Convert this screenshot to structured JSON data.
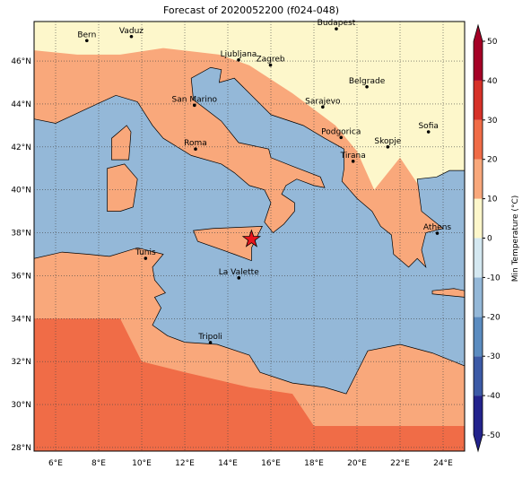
{
  "title": "Forecast of 2020052200 (f024-048)",
  "map": {
    "lonlim": [
      5,
      25
    ],
    "latlim": [
      27.83,
      47.84
    ],
    "lon_ticks": [
      {
        "value": 6,
        "label": "6°E"
      },
      {
        "value": 8,
        "label": "8°E"
      },
      {
        "value": 10,
        "label": "10°E"
      },
      {
        "value": 12,
        "label": "12°E"
      },
      {
        "value": 14,
        "label": "14°E"
      },
      {
        "value": 16,
        "label": "16°E"
      },
      {
        "value": 18,
        "label": "18°E"
      },
      {
        "value": 20,
        "label": "20°E"
      },
      {
        "value": 22,
        "label": "22°E"
      },
      {
        "value": 24,
        "label": "24°E"
      }
    ],
    "lat_ticks": [
      {
        "value": 28,
        "label": "28°N"
      },
      {
        "value": 30,
        "label": "30°N"
      },
      {
        "value": 32,
        "label": "32°N"
      },
      {
        "value": 34,
        "label": "34°N"
      },
      {
        "value": 36,
        "label": "36°N"
      },
      {
        "value": 38,
        "label": "38°N"
      },
      {
        "value": 40,
        "label": "40°N"
      },
      {
        "value": 42,
        "label": "42°N"
      },
      {
        "value": 44,
        "label": "44°N"
      },
      {
        "value": 46,
        "label": "46°N"
      }
    ],
    "cities": [
      "Bern",
      "Vaduz",
      "Budapest",
      "Ljubljana",
      "Zagreb",
      "Belgrade",
      "San Marino",
      "Sarajevo",
      "Sofia",
      "Podgorica",
      "Skopje",
      "Roma",
      "Tirana",
      "Athens",
      "Tunis",
      "La Valette",
      "Tripoli"
    ]
  },
  "colorbar": {
    "label": "Min Temperature (°C)",
    "range": [
      -50,
      50
    ],
    "ticks": [
      -50,
      -40,
      -30,
      -20,
      -10,
      0,
      10,
      20,
      30,
      40,
      50
    ],
    "colors": [
      "#23238c",
      "#3c5aa6",
      "#5b8cc0",
      "#94b8d8",
      "#d4e8f1",
      "#fdf7cb",
      "#f9a87b",
      "#f06c47",
      "#d63128",
      "#a50026"
    ]
  }
}
